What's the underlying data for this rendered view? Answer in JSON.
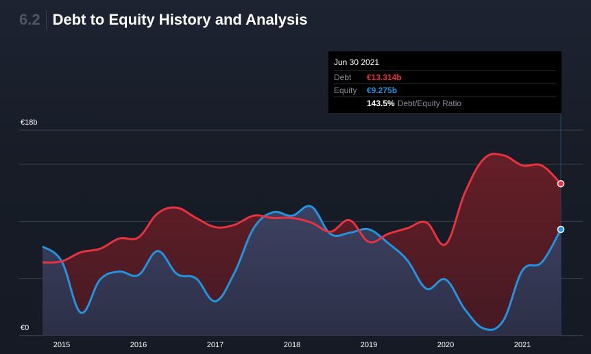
{
  "section": {
    "number": "6.2",
    "title": "Debt to Equity History and Analysis"
  },
  "tooltip": {
    "date": "Jun 30 2021",
    "debt_label": "Debt",
    "debt_value": "€13.314b",
    "equity_label": "Equity",
    "equity_value": "€9.275b",
    "ratio_value": "143.5%",
    "ratio_label": "Debt/Equity Ratio"
  },
  "colors": {
    "debt": "#e8333f",
    "equity": "#2394df",
    "grid": "#3a4050",
    "text": "#ffffff",
    "muted": "#8a909c"
  },
  "chart_data": {
    "type": "area",
    "title": "Debt to Equity History and Analysis",
    "ylim": [
      0,
      18
    ],
    "y_tick_labels": [
      {
        "value": 0,
        "label": "€0"
      },
      {
        "value": 18,
        "label": "€18b"
      }
    ],
    "y_gridlines": [
      0,
      5,
      10,
      15,
      18
    ],
    "xlim": [
      2014.75,
      2021.5
    ],
    "x_ticks": [
      2015,
      2016,
      2017,
      2018,
      2019,
      2020,
      2021
    ],
    "x_tick_labels": [
      "2015",
      "2016",
      "2017",
      "2018",
      "2019",
      "2020",
      "2021"
    ],
    "unit": "€ billions",
    "series": [
      {
        "name": "Debt",
        "color": "#e8333f",
        "x": [
          2014.75,
          2015.0,
          2015.25,
          2015.5,
          2015.75,
          2016.0,
          2016.25,
          2016.5,
          2016.75,
          2017.0,
          2017.25,
          2017.5,
          2017.75,
          2018.0,
          2018.25,
          2018.5,
          2018.75,
          2019.0,
          2019.25,
          2019.5,
          2019.75,
          2020.0,
          2020.25,
          2020.5,
          2020.75,
          2021.0,
          2021.25,
          2021.5
        ],
        "values": [
          6.4,
          6.5,
          7.3,
          7.6,
          8.5,
          8.6,
          10.7,
          11.2,
          10.3,
          9.5,
          9.7,
          10.5,
          10.3,
          10.3,
          9.9,
          9.1,
          10.1,
          8.2,
          8.9,
          9.4,
          9.9,
          8.0,
          12.5,
          15.5,
          15.8,
          14.9,
          14.9,
          13.3
        ]
      },
      {
        "name": "Equity",
        "color": "#2394df",
        "x": [
          2014.75,
          2015.0,
          2015.25,
          2015.5,
          2015.75,
          2016.0,
          2016.25,
          2016.5,
          2016.75,
          2017.0,
          2017.25,
          2017.5,
          2017.75,
          2018.0,
          2018.25,
          2018.5,
          2018.75,
          2019.0,
          2019.25,
          2019.5,
          2019.75,
          2020.0,
          2020.25,
          2020.5,
          2020.75,
          2021.0,
          2021.25,
          2021.5
        ],
        "values": [
          7.8,
          6.5,
          2.0,
          4.9,
          5.6,
          5.3,
          7.4,
          5.4,
          5.0,
          3.0,
          5.5,
          9.4,
          10.8,
          10.5,
          11.3,
          8.9,
          9.0,
          9.3,
          8.1,
          6.6,
          4.1,
          4.9,
          2.3,
          0.6,
          1.3,
          5.7,
          6.4,
          9.3
        ]
      }
    ]
  }
}
